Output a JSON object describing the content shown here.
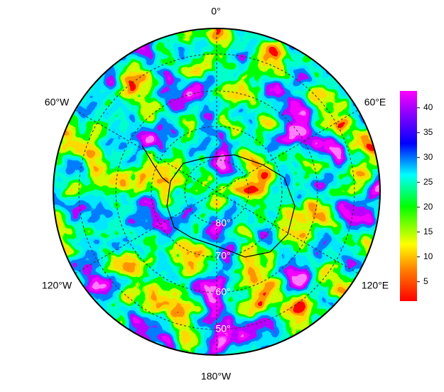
{
  "map": {
    "longitude_labels": [
      "0°",
      "60°E",
      "120°E",
      "180°W",
      "120°W",
      "60°W"
    ],
    "latitude_labels": [
      "80°",
      "70°",
      "60°",
      "50°"
    ]
  },
  "colorbar": {
    "lim": [
      1.1,
      43.4
    ],
    "ticks": [
      5,
      10,
      15,
      20,
      25,
      30,
      35,
      40
    ]
  }
}
